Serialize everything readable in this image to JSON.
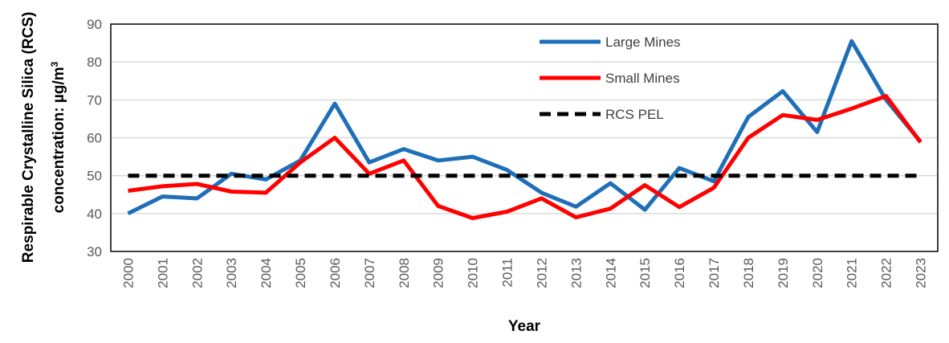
{
  "chart_data": {
    "type": "line",
    "title": "",
    "xlabel": "Year",
    "ylabel_line1": "Respirable Crystalline Silica (RCS)",
    "ylabel_line2_prefix": "concentration: µg/m",
    "ylabel_line2_sup": "3",
    "ylim": [
      30,
      90
    ],
    "yticks": [
      "30",
      "40",
      "50",
      "60",
      "70",
      "80",
      "90"
    ],
    "categories": [
      "2000",
      "2001",
      "2002",
      "2003",
      "2004",
      "2005",
      "2006",
      "2007",
      "2008",
      "2009",
      "2010",
      "2011",
      "2012",
      "2013",
      "2014",
      "2015",
      "2016",
      "2017",
      "2018",
      "2019",
      "2020",
      "2021",
      "2022",
      "2023"
    ],
    "grid": true,
    "legend_position": "top-center",
    "series": [
      {
        "name": "Large Mines",
        "color": "#1F6FB8",
        "style": "solid",
        "values": [
          40,
          44.5,
          44,
          50.5,
          49,
          54,
          69,
          53.5,
          57,
          54,
          55,
          51.5,
          45.5,
          41.8,
          48,
          41,
          52,
          48.5,
          65.5,
          72.3,
          61.5,
          85.5,
          70,
          59
        ]
      },
      {
        "name": "Small Mines",
        "color": "#FF0000",
        "style": "solid",
        "values": [
          46,
          47.2,
          47.8,
          45.8,
          45.5,
          53.5,
          60,
          50.5,
          54,
          42,
          38.8,
          40.5,
          44,
          39,
          41.3,
          47.5,
          41.7,
          46.8,
          60,
          66,
          64.7,
          67.7,
          71,
          58.8
        ]
      },
      {
        "name": "RCS PEL",
        "color": "#000000",
        "style": "dashed",
        "values": [
          50,
          50,
          50,
          50,
          50,
          50,
          50,
          50,
          50,
          50,
          50,
          50,
          50,
          50,
          50,
          50,
          50,
          50,
          50,
          50,
          50,
          50,
          50,
          50
        ]
      }
    ]
  }
}
